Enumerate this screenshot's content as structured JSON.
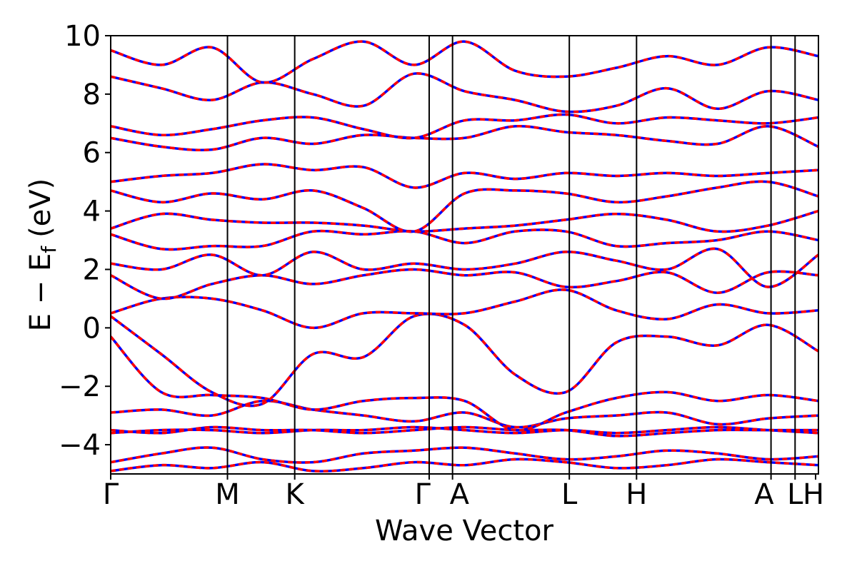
{
  "chart_data": {
    "type": "line",
    "xlabel": "Wave Vector",
    "ylabel_main": "E − E",
    "ylabel_sub": "f",
    "ylabel_unit": "(eV)",
    "ylim": [
      -5,
      10
    ],
    "yticks": [
      {
        "value": -4,
        "label": "−4"
      },
      {
        "value": -2,
        "label": "−2"
      },
      {
        "value": 0,
        "label": "0"
      },
      {
        "value": 2,
        "label": "2"
      },
      {
        "value": 4,
        "label": "4"
      },
      {
        "value": 6,
        "label": "6"
      },
      {
        "value": 8,
        "label": "8"
      },
      {
        "value": 10,
        "label": "10"
      }
    ],
    "xlim": [
      0,
      1
    ],
    "kpoints": [
      {
        "label": "Γ",
        "x": 0.0
      },
      {
        "label": "M",
        "x": 0.165
      },
      {
        "label": "K",
        "x": 0.26
      },
      {
        "label": "Γ",
        "x": 0.45
      },
      {
        "label": "A",
        "x": 0.483
      },
      {
        "label": "L",
        "x": 0.648
      },
      {
        "label": "H",
        "x": 0.743
      },
      {
        "label": "A",
        "x": 0.933
      },
      {
        "label": "L",
        "x": 0.967
      },
      {
        "label": "H",
        "x": 0.996
      }
    ],
    "kpoint_tick_marks": [
      "M",
      "L",
      "K"
    ],
    "series": [
      {
        "color": "#ff0000",
        "dash_color": "#0000ff",
        "bands": [
          [
            -4.9,
            -4.7,
            -4.8,
            -4.6,
            -4.9,
            -4.8,
            -4.6,
            -4.7,
            -4.5,
            -4.6,
            -4.8,
            -4.7,
            -4.5,
            -4.6,
            -4.7
          ],
          [
            -4.6,
            -4.3,
            -4.1,
            -4.5,
            -4.6,
            -4.3,
            -4.2,
            -4.1,
            -4.3,
            -4.5,
            -4.4,
            -4.2,
            -4.3,
            -4.5,
            -4.4
          ],
          [
            -3.6,
            -3.5,
            -3.5,
            -3.6,
            -3.5,
            -3.5,
            -3.4,
            -3.5,
            -3.6,
            -3.5,
            -3.6,
            -3.5,
            -3.4,
            -3.5,
            -3.6
          ],
          [
            -3.5,
            -3.6,
            -3.4,
            -3.5,
            -3.5,
            -3.6,
            -3.5,
            -3.4,
            -3.5,
            -3.5,
            -3.7,
            -3.6,
            -3.5,
            -3.5,
            -3.5
          ],
          [
            -2.9,
            -2.8,
            -3.0,
            -2.5,
            -2.8,
            -3.0,
            -3.2,
            -2.9,
            -3.4,
            -3.1,
            -3.0,
            -2.9,
            -3.3,
            -3.1,
            -3.0
          ],
          [
            -0.3,
            -2.2,
            -2.3,
            -2.4,
            -2.8,
            -2.5,
            -2.4,
            -2.5,
            -3.5,
            -2.9,
            -2.4,
            -2.2,
            -2.5,
            -2.3,
            -2.5
          ],
          [
            0.4,
            -0.9,
            -2.2,
            -2.6,
            -0.9,
            -1.0,
            0.4,
            0.1,
            -1.6,
            -2.2,
            -0.5,
            -0.3,
            -0.6,
            0.1,
            -0.8
          ],
          [
            0.5,
            1.0,
            1.0,
            0.6,
            0.0,
            0.5,
            0.5,
            0.5,
            0.9,
            1.3,
            0.6,
            0.3,
            0.8,
            0.5,
            0.6
          ],
          [
            1.8,
            1.0,
            1.5,
            1.8,
            1.5,
            1.8,
            2.0,
            1.8,
            1.9,
            1.4,
            1.6,
            1.9,
            1.2,
            1.9,
            1.8
          ],
          [
            2.2,
            2.0,
            2.5,
            1.8,
            2.6,
            2.0,
            2.2,
            2.0,
            2.2,
            2.6,
            2.3,
            2.0,
            2.7,
            1.4,
            2.5
          ],
          [
            3.2,
            2.7,
            2.8,
            2.8,
            3.3,
            3.2,
            3.3,
            2.9,
            3.3,
            3.3,
            2.8,
            2.9,
            3.0,
            3.3,
            3.0
          ],
          [
            3.4,
            3.9,
            3.7,
            3.6,
            3.6,
            3.5,
            3.3,
            3.4,
            3.5,
            3.7,
            3.9,
            3.7,
            3.3,
            3.5,
            4.0
          ],
          [
            4.7,
            4.3,
            4.6,
            4.4,
            4.7,
            4.1,
            3.3,
            4.6,
            4.7,
            4.6,
            4.3,
            4.5,
            4.8,
            5.0,
            4.5
          ],
          [
            5.0,
            5.2,
            5.3,
            5.6,
            5.4,
            5.5,
            4.8,
            5.3,
            5.1,
            5.3,
            5.2,
            5.3,
            5.2,
            5.3,
            5.4
          ],
          [
            6.5,
            6.2,
            6.1,
            6.5,
            6.3,
            6.6,
            6.5,
            6.5,
            6.9,
            6.7,
            6.6,
            6.4,
            6.3,
            6.9,
            6.2
          ],
          [
            6.9,
            6.6,
            6.8,
            7.1,
            7.2,
            6.8,
            6.5,
            7.1,
            7.1,
            7.3,
            7.0,
            7.2,
            7.1,
            7.0,
            7.2
          ],
          [
            8.6,
            8.2,
            7.8,
            8.4,
            8.0,
            7.6,
            8.7,
            8.1,
            7.8,
            7.4,
            7.6,
            8.2,
            7.5,
            8.1,
            7.8
          ],
          [
            9.5,
            9.0,
            9.6,
            8.4,
            9.2,
            9.8,
            9.0,
            9.8,
            8.8,
            8.6,
            8.9,
            9.3,
            9.0,
            9.6,
            9.3
          ]
        ]
      }
    ]
  }
}
